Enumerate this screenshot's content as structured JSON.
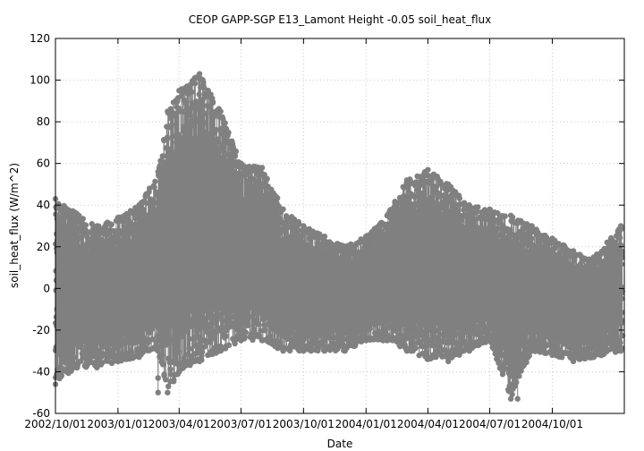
{
  "chart_data": {
    "type": "scatter",
    "title": "CEOP GAPP-SGP E13_Lamont Height -0.05 soil_heat_flux",
    "xlabel": "Date",
    "ylabel": "soil_heat_flux (W/m^2)",
    "xlim": [
      "2002-10-01",
      "2005-01-15"
    ],
    "ylim": [
      -60,
      120
    ],
    "yticks": [
      -60,
      -40,
      -20,
      0,
      20,
      40,
      60,
      80,
      100,
      120
    ],
    "xticks": [
      "2002/10/01",
      "2003/01/01",
      "2003/04/01",
      "2003/07/01",
      "2003/10/01",
      "2004/01/01",
      "2004/04/01",
      "2004/07/01",
      "2004/10/01"
    ],
    "grid": true,
    "legend": false,
    "marker_color": "#808080",
    "series": [
      {
        "envelope_note_free": true,
        "envelope": {
          "dates": [
            "2002-10-01",
            "2002-11-01",
            "2002-12-01",
            "2003-01-01",
            "2003-02-01",
            "2003-03-01",
            "2003-03-15",
            "2003-04-01",
            "2003-05-01",
            "2003-06-01",
            "2003-07-01",
            "2003-08-01",
            "2003-09-01",
            "2003-10-01",
            "2003-11-01",
            "2003-12-01",
            "2004-01-01",
            "2004-02-01",
            "2004-03-01",
            "2004-04-01",
            "2004-05-01",
            "2004-06-01",
            "2004-07-01",
            "2004-08-01",
            "2004-09-01",
            "2004-10-01",
            "2004-11-01",
            "2004-12-01",
            "2005-01-10"
          ],
          "max": [
            43,
            36,
            30,
            34,
            40,
            56,
            85,
            95,
            103,
            85,
            60,
            58,
            38,
            30,
            25,
            20,
            25,
            35,
            52,
            57,
            50,
            40,
            38,
            35,
            30,
            24,
            18,
            15,
            30
          ],
          "min": [
            -46,
            -38,
            -38,
            -35,
            -33,
            -30,
            -50,
            -40,
            -35,
            -30,
            -25,
            -25,
            -30,
            -30,
            -30,
            -30,
            -25,
            -25,
            -30,
            -34,
            -35,
            -30,
            -25,
            -53,
            -30,
            -32,
            -35,
            -33,
            -30
          ]
        }
      }
    ],
    "annotations": [
      {
        "date": "2003-03-01",
        "value": -50
      },
      {
        "date": "2003-03-01",
        "value": -43
      },
      {
        "date": "2004-08-11",
        "value": -53
      }
    ]
  }
}
